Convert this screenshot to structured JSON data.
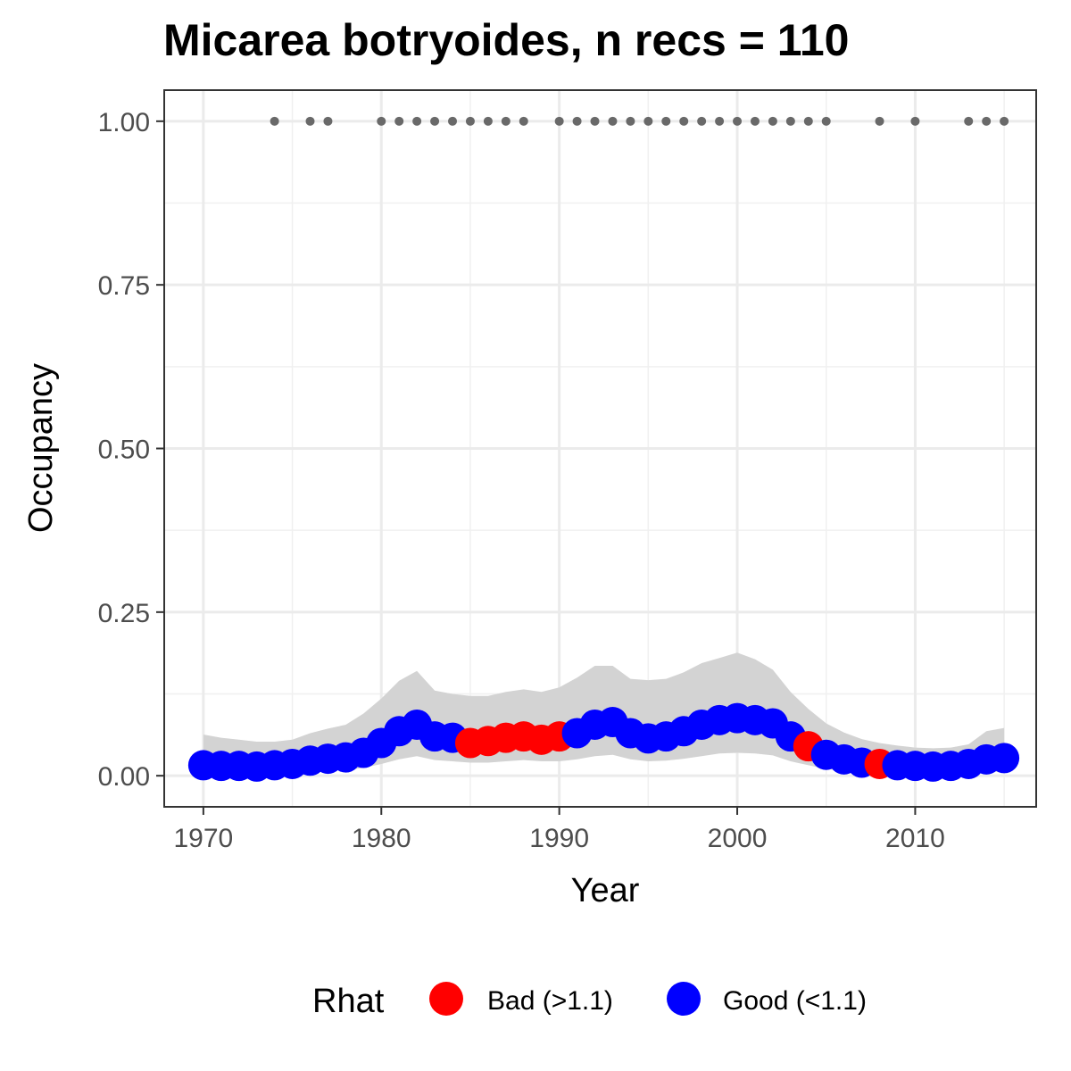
{
  "chart_data": {
    "type": "scatter",
    "title": "Micarea botryoides, n recs = 110",
    "xlabel": "Year",
    "ylabel": "Occupancy",
    "xlim": [
      1967.8,
      2016.8
    ],
    "ylim": [
      -0.0475,
      1.0475
    ],
    "x_ticks": [
      1970,
      1980,
      1990,
      2000,
      2010
    ],
    "x_tick_labels": [
      "1970",
      "1980",
      "1990",
      "2000",
      "2010"
    ],
    "y_ticks": [
      0,
      0.25,
      0.5,
      0.75,
      1
    ],
    "y_tick_labels": [
      "0.00",
      "0.25",
      "0.50",
      "0.75",
      "1.00"
    ],
    "grid": true,
    "legend": {
      "title": "Rhat",
      "position": "bottom",
      "entries": [
        {
          "label": "Bad (>1.1)",
          "color": "#ff0000"
        },
        {
          "label": "Good (<1.1)",
          "color": "#0000ff"
        }
      ]
    },
    "colors": {
      "bad": "#ff0000",
      "good": "#0000ff",
      "ribbon": "#d3d3d3",
      "records": "#696969"
    },
    "years": [
      1970,
      1971,
      1972,
      1973,
      1974,
      1975,
      1976,
      1977,
      1978,
      1979,
      1980,
      1981,
      1982,
      1983,
      1984,
      1985,
      1986,
      1987,
      1988,
      1989,
      1990,
      1991,
      1992,
      1993,
      1994,
      1995,
      1996,
      1997,
      1998,
      1999,
      2000,
      2001,
      2002,
      2003,
      2004,
      2005,
      2006,
      2007,
      2008,
      2009,
      2010,
      2011,
      2012,
      2013,
      2014,
      2015
    ],
    "occupancy": [
      0.016,
      0.015,
      0.015,
      0.014,
      0.016,
      0.018,
      0.023,
      0.026,
      0.028,
      0.035,
      0.05,
      0.068,
      0.078,
      0.06,
      0.058,
      0.05,
      0.053,
      0.058,
      0.06,
      0.055,
      0.06,
      0.065,
      0.078,
      0.082,
      0.065,
      0.057,
      0.06,
      0.068,
      0.078,
      0.085,
      0.088,
      0.085,
      0.08,
      0.06,
      0.045,
      0.032,
      0.025,
      0.02,
      0.018,
      0.016,
      0.015,
      0.014,
      0.015,
      0.018,
      0.025,
      0.027
    ],
    "rhat": [
      "good",
      "good",
      "good",
      "good",
      "good",
      "good",
      "good",
      "good",
      "good",
      "good",
      "good",
      "good",
      "good",
      "good",
      "good",
      "bad",
      "bad",
      "bad",
      "bad",
      "bad",
      "bad",
      "good",
      "good",
      "good",
      "good",
      "good",
      "good",
      "good",
      "good",
      "good",
      "good",
      "good",
      "good",
      "good",
      "bad",
      "good",
      "good",
      "good",
      "bad",
      "good",
      "good",
      "good",
      "good",
      "good",
      "good",
      "good"
    ],
    "ci_lower": [
      0.003,
      0.003,
      0.003,
      0.003,
      0.004,
      0.004,
      0.007,
      0.008,
      0.009,
      0.012,
      0.018,
      0.025,
      0.03,
      0.024,
      0.022,
      0.02,
      0.02,
      0.022,
      0.024,
      0.022,
      0.022,
      0.025,
      0.03,
      0.032,
      0.025,
      0.022,
      0.023,
      0.026,
      0.03,
      0.034,
      0.035,
      0.034,
      0.031,
      0.022,
      0.016,
      0.01,
      0.008,
      0.006,
      0.005,
      0.004,
      0.004,
      0.003,
      0.003,
      0.004,
      0.006,
      0.006
    ],
    "ci_upper": [
      0.063,
      0.058,
      0.055,
      0.052,
      0.052,
      0.055,
      0.065,
      0.072,
      0.078,
      0.095,
      0.118,
      0.145,
      0.16,
      0.13,
      0.125,
      0.122,
      0.122,
      0.128,
      0.132,
      0.128,
      0.135,
      0.15,
      0.168,
      0.168,
      0.148,
      0.146,
      0.148,
      0.158,
      0.172,
      0.18,
      0.188,
      0.178,
      0.162,
      0.128,
      0.102,
      0.08,
      0.066,
      0.056,
      0.05,
      0.046,
      0.043,
      0.042,
      0.043,
      0.048,
      0.068,
      0.073
    ],
    "record_years": [
      1974,
      1976,
      1977,
      1980,
      1981,
      1982,
      1983,
      1984,
      1985,
      1986,
      1987,
      1988,
      1990,
      1991,
      1992,
      1993,
      1994,
      1995,
      1996,
      1997,
      1998,
      1999,
      2000,
      2001,
      2002,
      2003,
      2004,
      2005,
      2008,
      2010,
      2013,
      2014,
      2015
    ],
    "record_value": 1.0
  }
}
